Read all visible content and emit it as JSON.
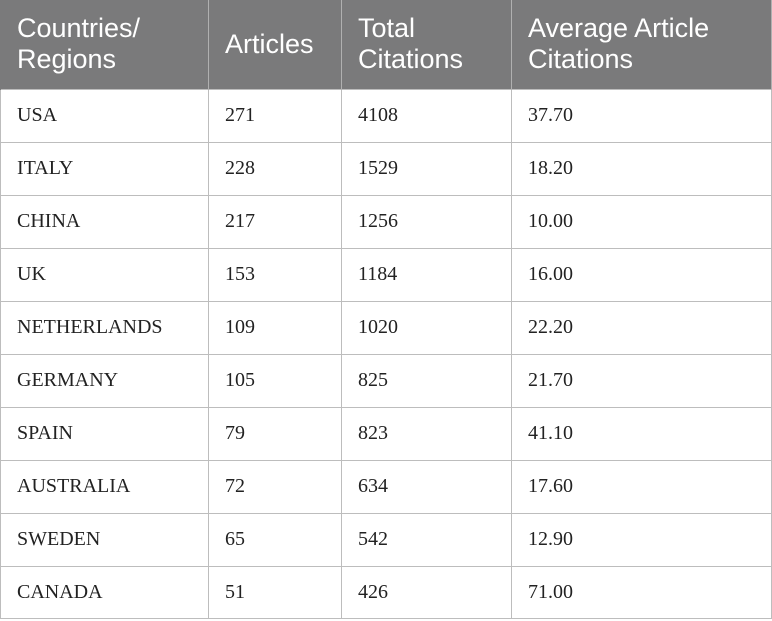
{
  "table": {
    "headers": [
      "Countries/ Regions",
      "Articles",
      "Total Citations",
      "Average Article Citations"
    ],
    "rows": [
      [
        "USA",
        "271",
        "4108",
        "37.70"
      ],
      [
        "ITALY",
        "228",
        "1529",
        "18.20"
      ],
      [
        "CHINA",
        "217",
        "1256",
        "10.00"
      ],
      [
        "UK",
        "153",
        "1184",
        "16.00"
      ],
      [
        "NETHERLANDS",
        "109",
        "1020",
        "22.20"
      ],
      [
        "GERMANY",
        "105",
        "825",
        "21.70"
      ],
      [
        "SPAIN",
        "79",
        "823",
        "41.10"
      ],
      [
        "AUSTRALIA",
        "72",
        "634",
        "17.60"
      ],
      [
        "SWEDEN",
        "65",
        "542",
        "12.90"
      ],
      [
        "CANADA",
        "51",
        "426",
        "71.00"
      ]
    ]
  },
  "colors": {
    "header_bg": "#7a7a7b",
    "header_text": "#ffffff",
    "grid": "#bdbdbd"
  }
}
